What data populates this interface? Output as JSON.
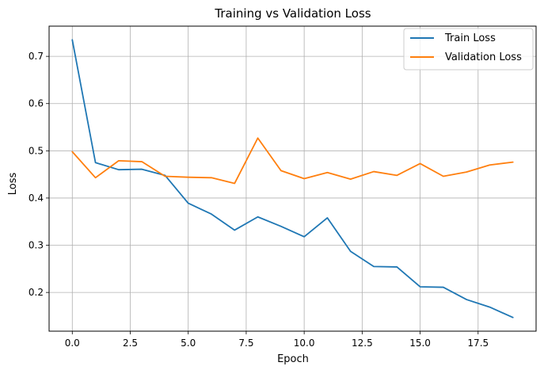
{
  "chart_data": {
    "type": "line",
    "title": "Training vs Validation Loss",
    "xlabel": "Epoch",
    "ylabel": "Loss",
    "grid": true,
    "legend_position": "top-right",
    "x": [
      0,
      1,
      2,
      3,
      4,
      5,
      6,
      7,
      8,
      9,
      10,
      11,
      12,
      13,
      14,
      15,
      16,
      17,
      18,
      19
    ],
    "xlim": [
      -1.0,
      20.0
    ],
    "ylim": [
      0.118,
      0.764
    ],
    "xticks": [
      {
        "value": 0.0,
        "label": "0.0"
      },
      {
        "value": 2.5,
        "label": "2.5"
      },
      {
        "value": 5.0,
        "label": "5.0"
      },
      {
        "value": 7.5,
        "label": "7.5"
      },
      {
        "value": 10.0,
        "label": "10.0"
      },
      {
        "value": 12.5,
        "label": "12.5"
      },
      {
        "value": 15.0,
        "label": "15.0"
      },
      {
        "value": 17.5,
        "label": "17.5"
      }
    ],
    "yticks": [
      {
        "value": 0.2,
        "label": "0.2"
      },
      {
        "value": 0.3,
        "label": "0.3"
      },
      {
        "value": 0.4,
        "label": "0.4"
      },
      {
        "value": 0.5,
        "label": "0.5"
      },
      {
        "value": 0.6,
        "label": "0.6"
      },
      {
        "value": 0.7,
        "label": "0.7"
      }
    ],
    "series": [
      {
        "name": "Train Loss",
        "color": "#1f77b4",
        "values": [
          0.735,
          0.475,
          0.46,
          0.461,
          0.448,
          0.389,
          0.366,
          0.332,
          0.36,
          0.34,
          0.318,
          0.358,
          0.287,
          0.255,
          0.254,
          0.212,
          0.211,
          0.185,
          0.169,
          0.147
        ]
      },
      {
        "name": "Validation Loss",
        "color": "#ff7f0e",
        "values": [
          0.498,
          0.443,
          0.479,
          0.477,
          0.446,
          0.444,
          0.443,
          0.431,
          0.527,
          0.458,
          0.441,
          0.454,
          0.44,
          0.456,
          0.448,
          0.473,
          0.446,
          0.455,
          0.47,
          0.476
        ]
      }
    ]
  }
}
